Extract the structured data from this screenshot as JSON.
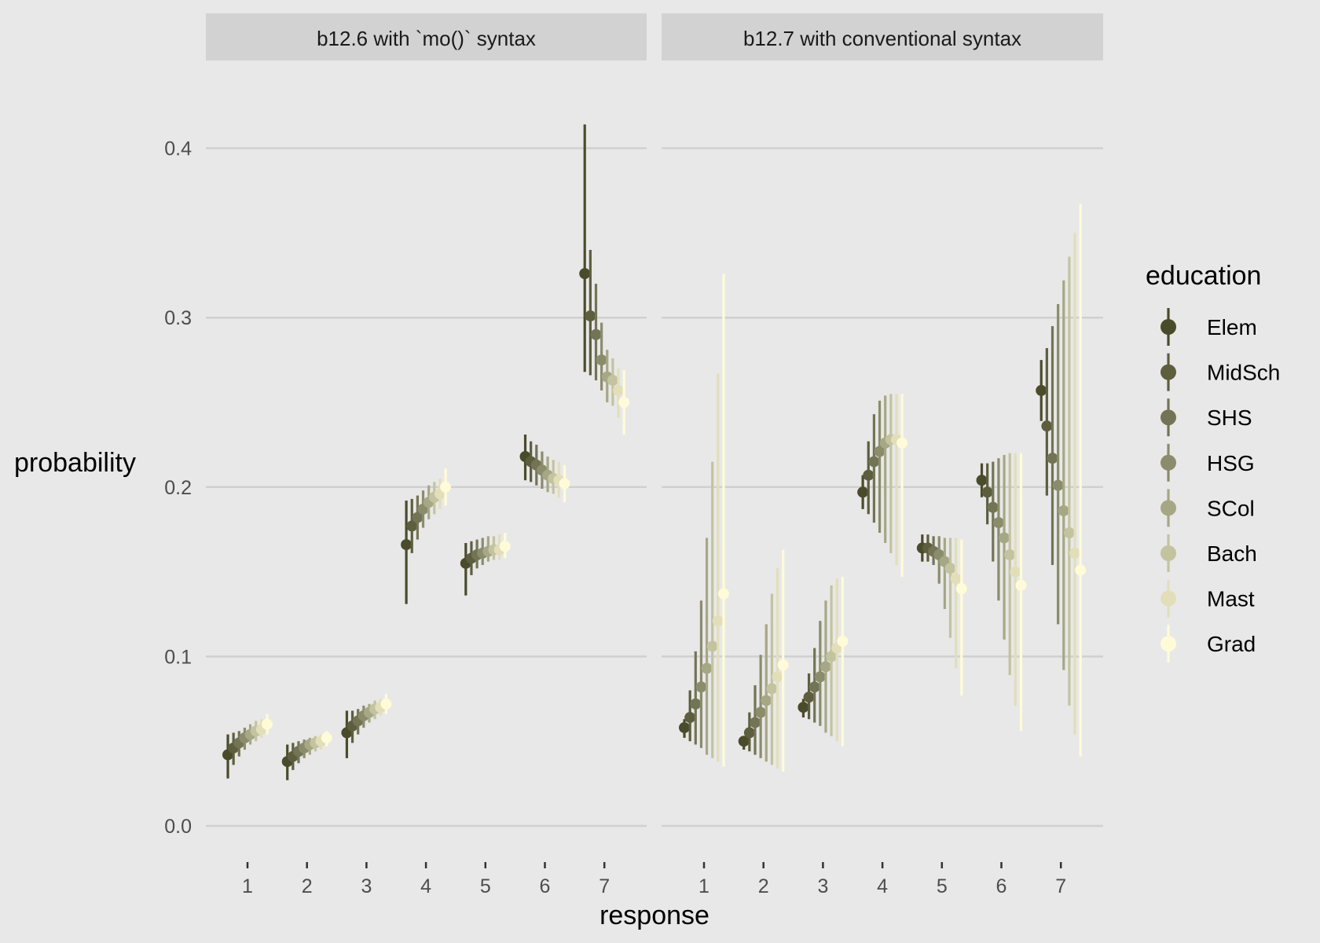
{
  "chart_data": {
    "type": "pointrange",
    "xlabel": "response",
    "ylabel": "probability",
    "ylim": [
      0,
      0.43
    ],
    "yticks": [
      0.0,
      0.1,
      0.2,
      0.3,
      0.4
    ],
    "ytick_labels": [
      "0.0",
      "0.1",
      "0.2",
      "0.3",
      "0.4"
    ],
    "categories": [
      "1",
      "2",
      "3",
      "4",
      "5",
      "6",
      "7"
    ],
    "grid": "horizontal major",
    "legend": {
      "title": "education",
      "placement": "right",
      "entries": [
        "Elem",
        "MidSch",
        "SHS",
        "HSG",
        "SCol",
        "Bach",
        "Mast",
        "Grad"
      ],
      "colors": [
        "#4a4b2a",
        "#5d5e3e",
        "#737455",
        "#8b8c6b",
        "#a6a784",
        "#c3c3a0",
        "#e2deba",
        "#fffbd8"
      ]
    },
    "panels": [
      {
        "title": "b12.6 with `mo()` syntax",
        "series": [
          {
            "name": "Elem",
            "mean": [
              0.042,
              0.038,
              0.055,
              0.166,
              0.155,
              0.218,
              0.326
            ],
            "lower": [
              0.028,
              0.027,
              0.04,
              0.131,
              0.136,
              0.204,
              0.268
            ],
            "upper": [
              0.054,
              0.048,
              0.068,
              0.192,
              0.167,
              0.231,
              0.414
            ]
          },
          {
            "name": "MidSch",
            "mean": [
              0.046,
              0.041,
              0.059,
              0.177,
              0.158,
              0.215,
              0.301
            ],
            "lower": [
              0.036,
              0.033,
              0.049,
              0.161,
              0.148,
              0.203,
              0.266
            ],
            "upper": [
              0.055,
              0.049,
              0.068,
              0.193,
              0.168,
              0.227,
              0.34
            ]
          },
          {
            "name": "SHS",
            "mean": [
              0.049,
              0.044,
              0.062,
              0.182,
              0.16,
              0.213,
              0.29
            ],
            "lower": [
              0.041,
              0.037,
              0.054,
              0.169,
              0.152,
              0.201,
              0.263
            ],
            "upper": [
              0.056,
              0.05,
              0.069,
              0.195,
              0.169,
              0.225,
              0.32
            ]
          },
          {
            "name": "HSG",
            "mean": [
              0.052,
              0.046,
              0.065,
              0.187,
              0.161,
              0.21,
              0.275
            ],
            "lower": [
              0.045,
              0.04,
              0.058,
              0.176,
              0.154,
              0.199,
              0.257
            ],
            "upper": [
              0.058,
              0.051,
              0.071,
              0.198,
              0.17,
              0.221,
              0.297
            ]
          },
          {
            "name": "SCol",
            "mean": [
              0.054,
              0.048,
              0.067,
              0.191,
              0.162,
              0.207,
              0.265
            ],
            "lower": [
              0.048,
              0.042,
              0.061,
              0.181,
              0.156,
              0.197,
              0.25
            ],
            "upper": [
              0.06,
              0.052,
              0.072,
              0.201,
              0.171,
              0.218,
              0.281
            ]
          },
          {
            "name": "Bach",
            "mean": [
              0.056,
              0.049,
              0.069,
              0.194,
              0.163,
              0.205,
              0.263
            ],
            "lower": [
              0.05,
              0.044,
              0.063,
              0.184,
              0.157,
              0.196,
              0.248
            ],
            "upper": [
              0.062,
              0.053,
              0.074,
              0.203,
              0.171,
              0.216,
              0.276
            ]
          },
          {
            "name": "Mast",
            "mean": [
              0.057,
              0.05,
              0.07,
              0.196,
              0.163,
              0.204,
              0.257
            ],
            "lower": [
              0.052,
              0.045,
              0.065,
              0.187,
              0.157,
              0.194,
              0.241
            ],
            "upper": [
              0.063,
              0.054,
              0.075,
              0.205,
              0.172,
              0.215,
              0.27
            ]
          },
          {
            "name": "Grad",
            "mean": [
              0.06,
              0.052,
              0.072,
              0.2,
              0.165,
              0.202,
              0.25
            ],
            "lower": [
              0.054,
              0.047,
              0.066,
              0.189,
              0.158,
              0.191,
              0.231
            ],
            "upper": [
              0.066,
              0.056,
              0.078,
              0.211,
              0.173,
              0.213,
              0.269
            ]
          }
        ]
      },
      {
        "title": "b12.7 with conventional syntax",
        "series": [
          {
            "name": "Elem",
            "mean": [
              0.058,
              0.05,
              0.07,
              0.197,
              0.164,
              0.204,
              0.257
            ],
            "lower": [
              0.052,
              0.045,
              0.064,
              0.187,
              0.156,
              0.194,
              0.239
            ],
            "upper": [
              0.063,
              0.053,
              0.075,
              0.207,
              0.172,
              0.214,
              0.275
            ]
          },
          {
            "name": "MidSch",
            "mean": [
              0.064,
              0.055,
              0.076,
              0.207,
              0.164,
              0.197,
              0.236
            ],
            "lower": [
              0.05,
              0.044,
              0.063,
              0.184,
              0.156,
              0.178,
              0.195
            ],
            "upper": [
              0.08,
              0.067,
              0.09,
              0.227,
              0.172,
              0.214,
              0.282
            ]
          },
          {
            "name": "SHS",
            "mean": [
              0.072,
              0.061,
              0.082,
              0.215,
              0.162,
              0.188,
              0.217
            ],
            "lower": [
              0.048,
              0.042,
              0.061,
              0.179,
              0.154,
              0.156,
              0.154
            ],
            "upper": [
              0.103,
              0.083,
              0.105,
              0.243,
              0.171,
              0.215,
              0.295
            ]
          },
          {
            "name": "HSG",
            "mean": [
              0.082,
              0.067,
              0.088,
              0.221,
              0.16,
              0.179,
              0.201
            ],
            "lower": [
              0.046,
              0.04,
              0.059,
              0.173,
              0.143,
              0.133,
              0.119
            ],
            "upper": [
              0.133,
              0.101,
              0.121,
              0.251,
              0.171,
              0.217,
              0.308
            ]
          },
          {
            "name": "SCol",
            "mean": [
              0.093,
              0.074,
              0.094,
              0.226,
              0.156,
              0.17,
              0.186
            ],
            "lower": [
              0.042,
              0.038,
              0.055,
              0.167,
              0.128,
              0.11,
              0.092
            ],
            "upper": [
              0.17,
              0.119,
              0.133,
              0.254,
              0.17,
              0.219,
              0.322
            ]
          },
          {
            "name": "Bach",
            "mean": [
              0.106,
              0.081,
              0.1,
              0.228,
              0.152,
              0.16,
              0.173
            ],
            "lower": [
              0.04,
              0.036,
              0.053,
              0.161,
              0.111,
              0.089,
              0.071
            ],
            "upper": [
              0.215,
              0.137,
              0.142,
              0.255,
              0.17,
              0.22,
              0.336
            ]
          },
          {
            "name": "Mast",
            "mean": [
              0.121,
              0.088,
              0.105,
              0.228,
              0.146,
              0.15,
              0.161
            ],
            "lower": [
              0.038,
              0.034,
              0.05,
              0.154,
              0.093,
              0.071,
              0.054
            ],
            "upper": [
              0.267,
              0.152,
              0.146,
              0.255,
              0.17,
              0.22,
              0.35
            ]
          },
          {
            "name": "Grad",
            "mean": [
              0.137,
              0.095,
              0.109,
              0.226,
              0.14,
              0.142,
              0.151
            ],
            "lower": [
              0.035,
              0.032,
              0.047,
              0.147,
              0.077,
              0.056,
              0.041
            ],
            "upper": [
              0.326,
              0.163,
              0.147,
              0.255,
              0.169,
              0.22,
              0.367
            ]
          }
        ]
      }
    ]
  }
}
